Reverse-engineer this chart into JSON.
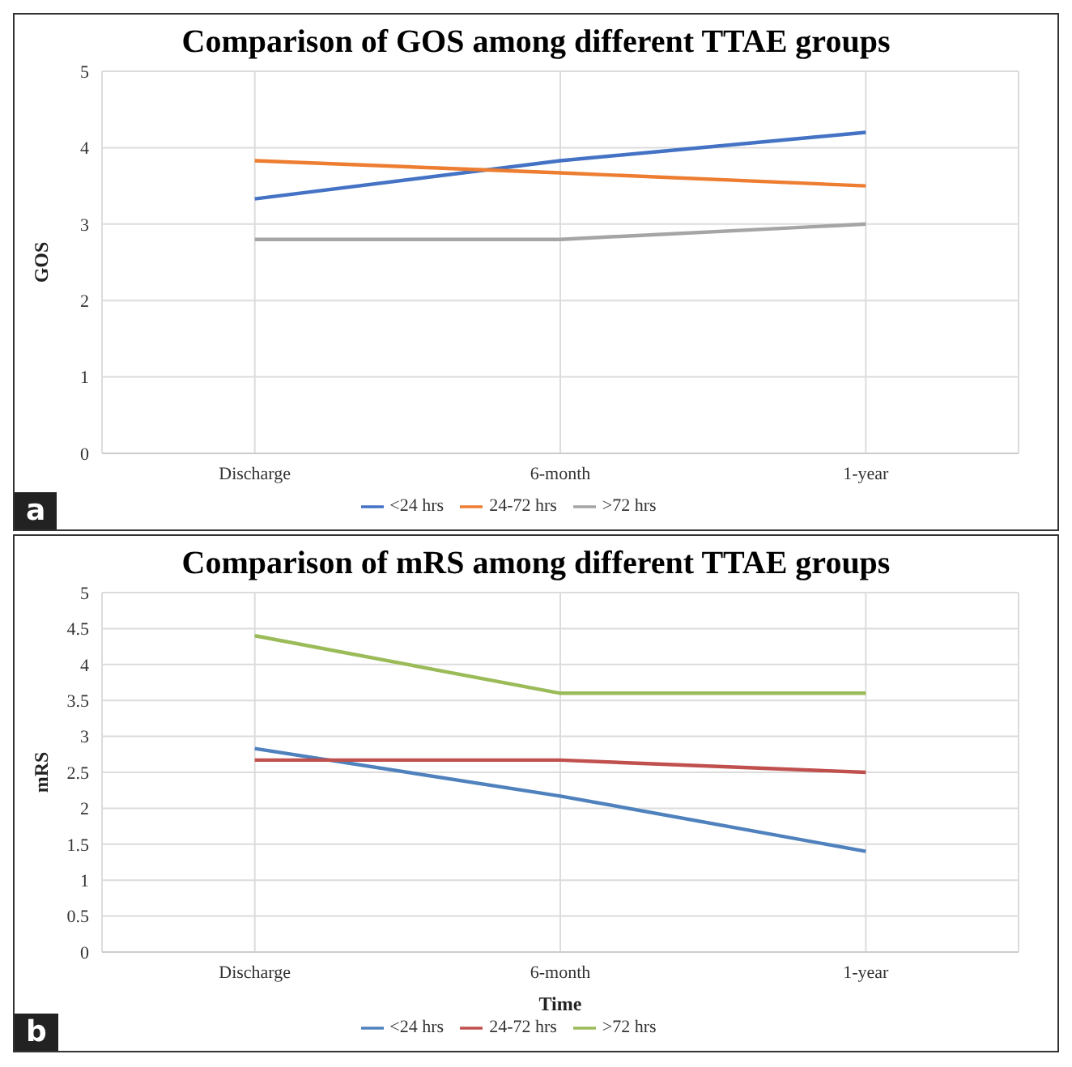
{
  "chart_data": [
    {
      "type": "line",
      "title": "Comparison of GOS among different TTAE groups",
      "ylabel": "GOS",
      "categories": [
        "Discharge",
        "6-month",
        "1-year"
      ],
      "series": [
        {
          "name": "<24 hrs",
          "color": "#4472c4",
          "values": [
            3.33,
            3.83,
            4.2
          ]
        },
        {
          "name": "24-72 hrs",
          "color": "#ed7d31",
          "values": [
            3.83,
            3.67,
            3.5
          ]
        },
        {
          "name": ">72 hrs",
          "color": "#a5a5a5",
          "values": [
            2.8,
            2.8,
            3.0
          ]
        }
      ],
      "ylim": [
        0,
        5
      ],
      "yticks": [
        0,
        1,
        2,
        3,
        4,
        5
      ],
      "grid": true,
      "legend": "bottom",
      "marker": "none",
      "annotations": [
        "a"
      ]
    },
    {
      "type": "line",
      "title": "Comparison of mRS among different TTAE groups",
      "xlabel": "Time",
      "ylabel": "mRS",
      "categories": [
        "Discharge",
        "6-month",
        "1-year"
      ],
      "series": [
        {
          "name": "<24 hrs",
          "color": "#4f81bd",
          "values": [
            2.83,
            2.17,
            1.4
          ]
        },
        {
          "name": "24-72 hrs",
          "color": "#c0504d",
          "values": [
            2.67,
            2.67,
            2.5
          ]
        },
        {
          "name": ">72 hrs",
          "color": "#9bbb59",
          "values": [
            4.4,
            3.6,
            3.6
          ]
        }
      ],
      "ylim": [
        0,
        5
      ],
      "yticks": [
        0,
        0.5,
        1,
        1.5,
        2,
        2.5,
        3,
        3.5,
        4,
        4.5,
        5
      ],
      "grid": true,
      "legend": "bottom",
      "marker": "none",
      "annotations": [
        "b"
      ]
    }
  ]
}
